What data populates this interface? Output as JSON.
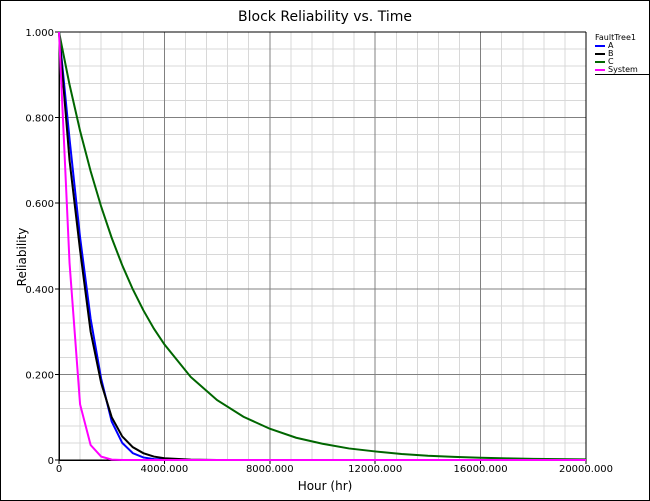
{
  "chart_data": {
    "type": "line",
    "title": "Block Reliability vs. Time",
    "xlabel": "Hour (hr)",
    "ylabel": "Reliability",
    "xlim": [
      0,
      20000
    ],
    "ylim": [
      0,
      1
    ],
    "x_ticks": [
      "0",
      "4000.000",
      "8000.000",
      "12000.000",
      "16000.000",
      "20000.000"
    ],
    "y_ticks": [
      "0",
      "0.200",
      "0.400",
      "0.600",
      "0.800",
      "1.000"
    ],
    "grid": true,
    "legend_title": "FaultTree1",
    "legend_position": "right-top",
    "x": [
      0,
      400,
      800,
      1200,
      1600,
      2000,
      2400,
      2800,
      3200,
      3600,
      4000,
      5000,
      6000,
      7000,
      8000,
      9000,
      10000,
      11000,
      12000,
      13000,
      14000,
      15000,
      16000,
      17000,
      18000,
      19000,
      20000
    ],
    "series": [
      {
        "name": "A",
        "color": "#0000ff",
        "values": [
          1.0,
          0.75,
          0.52,
          0.33,
          0.19,
          0.09,
          0.04,
          0.016,
          0.006,
          0.002,
          0.001,
          0,
          0,
          0,
          0,
          0,
          0,
          0,
          0,
          0,
          0,
          0,
          0,
          0,
          0,
          0,
          0
        ]
      },
      {
        "name": "B",
        "color": "#000000",
        "values": [
          1.0,
          0.7,
          0.49,
          0.3,
          0.18,
          0.1,
          0.055,
          0.03,
          0.016,
          0.008,
          0.004,
          0.001,
          0,
          0,
          0,
          0,
          0,
          0,
          0,
          0,
          0,
          0,
          0,
          0,
          0,
          0,
          0
        ]
      },
      {
        "name": "C",
        "color": "#006600",
        "values": [
          1.0,
          0.877,
          0.769,
          0.675,
          0.592,
          0.519,
          0.455,
          0.399,
          0.35,
          0.307,
          0.27,
          0.194,
          0.14,
          0.101,
          0.073,
          0.052,
          0.038,
          0.027,
          0.02,
          0.014,
          0.01,
          0.0074,
          0.0053,
          0.0038,
          0.0027,
          0.002,
          0.0014
        ]
      },
      {
        "name": "System",
        "color": "#ff00ff",
        "values": [
          1.0,
          0.46,
          0.13,
          0.035,
          0.008,
          0.001,
          0,
          0,
          0,
          0,
          0,
          0,
          0,
          0,
          0,
          0,
          0,
          0,
          0,
          0,
          0,
          0,
          0,
          0,
          0,
          0,
          0
        ]
      }
    ]
  },
  "legend": {
    "title": "FaultTree1",
    "items": [
      {
        "label": "A",
        "color": "#0000ff"
      },
      {
        "label": "B",
        "color": "#000000"
      },
      {
        "label": "C",
        "color": "#006600"
      },
      {
        "label": "System",
        "color": "#ff00ff"
      }
    ]
  }
}
